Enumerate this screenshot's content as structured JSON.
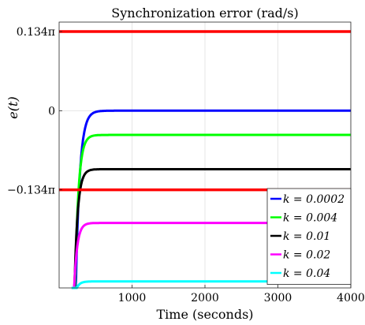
{
  "chart_data": {
    "type": "line",
    "title": "Synchronization error (rad/s)",
    "xlabel": "Time (seconds)",
    "ylabel": "e(t)",
    "xlim": [
      0,
      4000
    ],
    "ylim": [
      -0.3,
      0.15
    ],
    "x_ticks": [
      1000,
      2000,
      3000,
      4000
    ],
    "x_tick_labels": [
      "1000",
      "2000",
      "3000",
      "4000"
    ],
    "y_ticks": [
      0.134,
      0,
      -0.134
    ],
    "y_tick_labels": [
      "0.134π",
      "0",
      "−0.134π"
    ],
    "y_unit": "π rad/s",
    "grid": true,
    "legend_position": "bottom-right",
    "bounds": {
      "values": [
        0.134,
        -0.134
      ],
      "color": "#ff0000"
    },
    "series": [
      {
        "name": "k = 0.0002",
        "color": "#0000ff",
        "steady": 0.0,
        "rise_start": 220,
        "settle": 440
      },
      {
        "name": "k = 0.004",
        "color": "#00ff00",
        "steady": -0.041,
        "rise_start": 210,
        "settle": 400
      },
      {
        "name": "k = 0.01",
        "color": "#000000",
        "steady": -0.099,
        "rise_start": 200,
        "settle": 380
      },
      {
        "name": "k = 0.02",
        "color": "#ff00ff",
        "steady": -0.19,
        "rise_start": 190,
        "settle": 360
      },
      {
        "name": "k = 0.04",
        "color": "#00ffff",
        "steady": -0.289,
        "rise_start": 170,
        "settle": 340
      }
    ]
  }
}
